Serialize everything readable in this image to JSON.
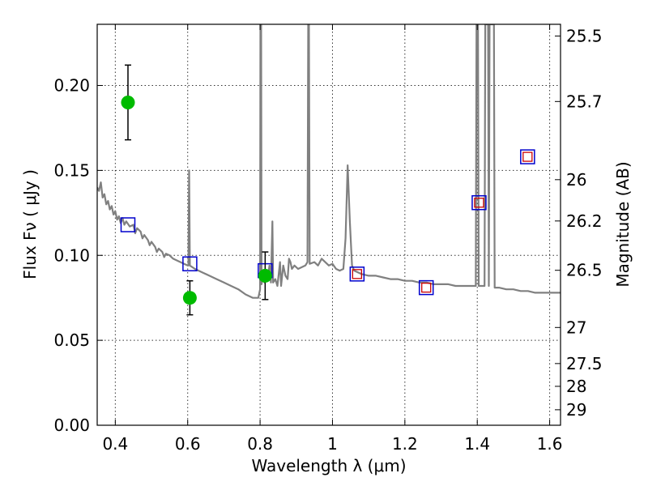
{
  "chart_data": {
    "type": "scatter",
    "title": "",
    "xlabel": "Wavelength  λ (μm)",
    "ylabel": "Flux  Fν  ( μJy )",
    "y2label": "Magnitude (AB)",
    "xlim": [
      0.35,
      1.63
    ],
    "ylim": [
      0.0,
      0.236
    ],
    "x_ticks": [
      0.4,
      0.6,
      0.8,
      1.0,
      1.2,
      1.4,
      1.6
    ],
    "x_tick_labels": [
      "0.4",
      "0.6",
      "0.8",
      "1",
      "1.2",
      "1.4",
      "1.6"
    ],
    "y_ticks": [
      0.0,
      0.05,
      0.1,
      0.15,
      0.2
    ],
    "y_tick_labels": [
      "0.00",
      "0.05",
      "0.10",
      "0.15",
      "0.20"
    ],
    "mag_ticks": [
      25.5,
      25.7,
      26,
      26.2,
      26.5,
      27,
      27.5,
      28,
      29
    ],
    "mag_tick_labels": [
      "25.5",
      "25.7",
      "26",
      "26.2",
      "26.5",
      "27",
      "27.5",
      "28",
      "29"
    ],
    "grid": true,
    "colors": {
      "model": "#808080",
      "observed": "#00bb00",
      "model_band": "#0000cc",
      "model_band_inner": "#cc0000"
    },
    "observed": [
      {
        "x": 0.435,
        "y": 0.19,
        "err": 0.022
      },
      {
        "x": 0.606,
        "y": 0.075,
        "err": 0.01
      },
      {
        "x": 0.814,
        "y": 0.088,
        "err": 0.014
      }
    ],
    "model_bands": [
      {
        "x": 0.435,
        "y": 0.118,
        "inner": false
      },
      {
        "x": 0.606,
        "y": 0.095,
        "inner": false
      },
      {
        "x": 0.814,
        "y": 0.091,
        "inner": false
      },
      {
        "x": 1.068,
        "y": 0.089,
        "inner": true
      },
      {
        "x": 1.259,
        "y": 0.081,
        "inner": true
      },
      {
        "x": 1.405,
        "y": 0.131,
        "inner": true
      },
      {
        "x": 1.539,
        "y": 0.158,
        "inner": true
      }
    ],
    "model_spectrum": [
      [
        0.35,
        0.14
      ],
      [
        0.355,
        0.138
      ],
      [
        0.36,
        0.143
      ],
      [
        0.365,
        0.134
      ],
      [
        0.37,
        0.136
      ],
      [
        0.375,
        0.13
      ],
      [
        0.38,
        0.132
      ],
      [
        0.385,
        0.127
      ],
      [
        0.39,
        0.129
      ],
      [
        0.395,
        0.124
      ],
      [
        0.4,
        0.126
      ],
      [
        0.405,
        0.121
      ],
      [
        0.41,
        0.123
      ],
      [
        0.415,
        0.119
      ],
      [
        0.42,
        0.122
      ],
      [
        0.425,
        0.118
      ],
      [
        0.43,
        0.12
      ],
      [
        0.44,
        0.117
      ],
      [
        0.45,
        0.118
      ],
      [
        0.455,
        0.113
      ],
      [
        0.46,
        0.116
      ],
      [
        0.47,
        0.114
      ],
      [
        0.475,
        0.11
      ],
      [
        0.48,
        0.112
      ],
      [
        0.49,
        0.109
      ],
      [
        0.495,
        0.106
      ],
      [
        0.5,
        0.108
      ],
      [
        0.51,
        0.105
      ],
      [
        0.515,
        0.102
      ],
      [
        0.52,
        0.104
      ],
      [
        0.53,
        0.102
      ],
      [
        0.535,
        0.099
      ],
      [
        0.54,
        0.101
      ],
      [
        0.55,
        0.1
      ],
      [
        0.56,
        0.098
      ],
      [
        0.57,
        0.097
      ],
      [
        0.58,
        0.096
      ],
      [
        0.59,
        0.095
      ],
      [
        0.6,
        0.094
      ],
      [
        0.602,
        0.094
      ],
      [
        0.604,
        0.15
      ],
      [
        0.606,
        0.094
      ],
      [
        0.62,
        0.092
      ],
      [
        0.64,
        0.09
      ],
      [
        0.66,
        0.088
      ],
      [
        0.68,
        0.086
      ],
      [
        0.7,
        0.084
      ],
      [
        0.72,
        0.082
      ],
      [
        0.74,
        0.08
      ],
      [
        0.76,
        0.077
      ],
      [
        0.78,
        0.075
      ],
      [
        0.795,
        0.075
      ],
      [
        0.8,
        0.08
      ],
      [
        0.801,
        0.236
      ],
      [
        0.803,
        0.236
      ],
      [
        0.804,
        0.083
      ],
      [
        0.808,
        0.088
      ],
      [
        0.812,
        0.084
      ],
      [
        0.816,
        0.09
      ],
      [
        0.82,
        0.086
      ],
      [
        0.826,
        0.094
      ],
      [
        0.83,
        0.084
      ],
      [
        0.834,
        0.12
      ],
      [
        0.836,
        0.084
      ],
      [
        0.842,
        0.086
      ],
      [
        0.848,
        0.082
      ],
      [
        0.855,
        0.096
      ],
      [
        0.858,
        0.082
      ],
      [
        0.864,
        0.094
      ],
      [
        0.87,
        0.088
      ],
      [
        0.876,
        0.086
      ],
      [
        0.88,
        0.098
      ],
      [
        0.884,
        0.096
      ],
      [
        0.888,
        0.092
      ],
      [
        0.895,
        0.094
      ],
      [
        0.905,
        0.092
      ],
      [
        0.915,
        0.093
      ],
      [
        0.925,
        0.094
      ],
      [
        0.931,
        0.096
      ],
      [
        0.933,
        0.236
      ],
      [
        0.935,
        0.236
      ],
      [
        0.937,
        0.095
      ],
      [
        0.95,
        0.096
      ],
      [
        0.96,
        0.094
      ],
      [
        0.97,
        0.098
      ],
      [
        0.98,
        0.096
      ],
      [
        0.99,
        0.094
      ],
      [
        1.0,
        0.095
      ],
      [
        1.01,
        0.092
      ],
      [
        1.02,
        0.091
      ],
      [
        1.03,
        0.092
      ],
      [
        1.036,
        0.11
      ],
      [
        1.042,
        0.153
      ],
      [
        1.048,
        0.12
      ],
      [
        1.054,
        0.094
      ],
      [
        1.06,
        0.091
      ],
      [
        1.08,
        0.089
      ],
      [
        1.1,
        0.088
      ],
      [
        1.12,
        0.088
      ],
      [
        1.14,
        0.087
      ],
      [
        1.16,
        0.086
      ],
      [
        1.18,
        0.086
      ],
      [
        1.2,
        0.085
      ],
      [
        1.22,
        0.085
      ],
      [
        1.24,
        0.084
      ],
      [
        1.26,
        0.084
      ],
      [
        1.28,
        0.083
      ],
      [
        1.3,
        0.083
      ],
      [
        1.32,
        0.083
      ],
      [
        1.34,
        0.082
      ],
      [
        1.36,
        0.082
      ],
      [
        1.38,
        0.082
      ],
      [
        1.396,
        0.082
      ],
      [
        1.398,
        0.236
      ],
      [
        1.402,
        0.236
      ],
      [
        1.404,
        0.082
      ],
      [
        1.416,
        0.082
      ],
      [
        1.42,
        0.082
      ],
      [
        1.422,
        0.236
      ],
      [
        1.43,
        0.236
      ],
      [
        1.432,
        0.082
      ],
      [
        1.434,
        0.236
      ],
      [
        1.446,
        0.236
      ],
      [
        1.448,
        0.081
      ],
      [
        1.46,
        0.081
      ],
      [
        1.48,
        0.08
      ],
      [
        1.5,
        0.08
      ],
      [
        1.52,
        0.079
      ],
      [
        1.54,
        0.079
      ],
      [
        1.56,
        0.078
      ],
      [
        1.58,
        0.078
      ],
      [
        1.6,
        0.078
      ],
      [
        1.63,
        0.078
      ]
    ]
  }
}
